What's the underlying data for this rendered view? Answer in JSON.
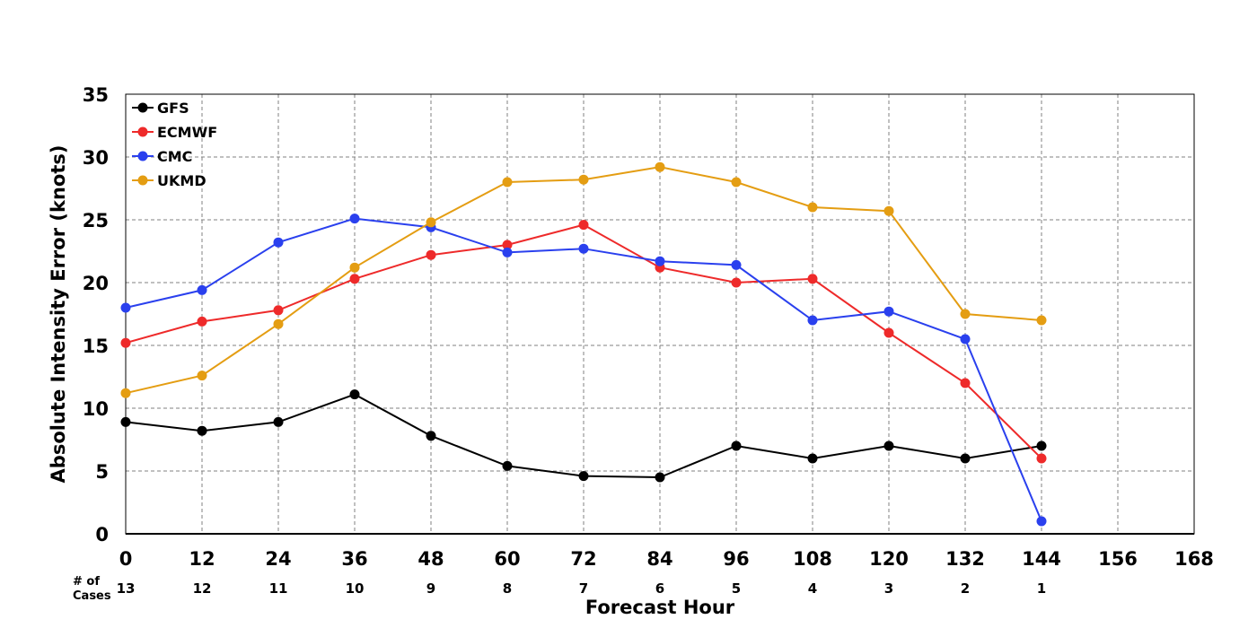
{
  "chart_data": {
    "type": "line",
    "title": "",
    "xlabel": "Forecast Hour",
    "ylabel": "Absolute Intensity Error (knots)",
    "xlim": [
      0,
      168
    ],
    "ylim": [
      0,
      35
    ],
    "x_ticks": [
      0,
      12,
      24,
      36,
      48,
      60,
      72,
      84,
      96,
      108,
      120,
      132,
      144,
      156,
      168
    ],
    "y_ticks": [
      0,
      5,
      10,
      15,
      20,
      25,
      30,
      35
    ],
    "grid": true,
    "legend_position": "top-left",
    "cases_title": [
      "# of",
      "Cases"
    ],
    "cases": [
      {
        "x": 0,
        "label": "13"
      },
      {
        "x": 12,
        "label": "12"
      },
      {
        "x": 24,
        "label": "11"
      },
      {
        "x": 36,
        "label": "10"
      },
      {
        "x": 48,
        "label": "9"
      },
      {
        "x": 60,
        "label": "8"
      },
      {
        "x": 72,
        "label": "7"
      },
      {
        "x": 84,
        "label": "6"
      },
      {
        "x": 96,
        "label": "5"
      },
      {
        "x": 108,
        "label": "4"
      },
      {
        "x": 120,
        "label": "3"
      },
      {
        "x": 132,
        "label": "2"
      },
      {
        "x": 144,
        "label": "1"
      }
    ],
    "x": [
      0,
      12,
      24,
      36,
      48,
      60,
      72,
      84,
      96,
      108,
      120,
      132,
      144
    ],
    "series": [
      {
        "name": "GFS",
        "color": "#000000",
        "values": [
          8.9,
          8.2,
          8.9,
          11.1,
          7.8,
          5.4,
          4.6,
          4.5,
          7.0,
          6.0,
          7.0,
          6.0,
          7.0
        ]
      },
      {
        "name": "ECMWF",
        "color": "#ee2a2a",
        "values": [
          15.2,
          16.9,
          17.8,
          20.3,
          22.2,
          23.0,
          24.6,
          21.2,
          20.0,
          20.3,
          16.0,
          12.0,
          6.0
        ]
      },
      {
        "name": "CMC",
        "color": "#2a40ee",
        "values": [
          18.0,
          19.4,
          23.2,
          25.1,
          24.4,
          22.4,
          22.7,
          21.7,
          21.4,
          17.0,
          17.7,
          15.5,
          1.0
        ]
      },
      {
        "name": "UKMD",
        "color": "#e49d12",
        "values": [
          11.2,
          12.6,
          16.7,
          21.2,
          24.8,
          28.0,
          28.2,
          29.2,
          28.0,
          26.0,
          25.7,
          17.5,
          17.0
        ]
      }
    ]
  }
}
